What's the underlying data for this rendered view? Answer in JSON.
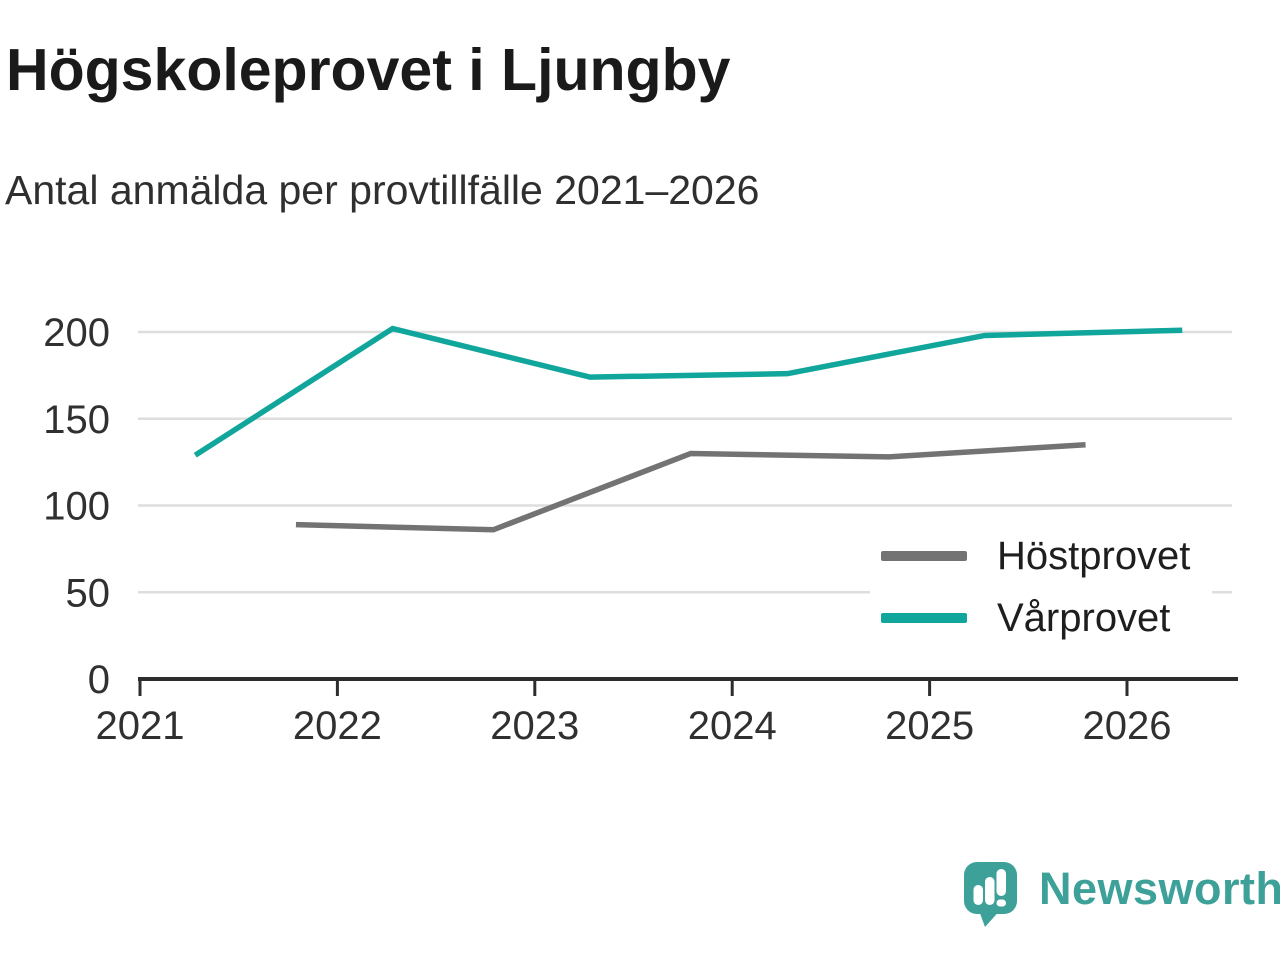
{
  "chart_data": {
    "type": "line",
    "title": "Högskoleprovet i Ljungby",
    "subtitle": "Antal anmälda per provtillfälle 2021–2026",
    "x_ticks": [
      2021,
      2022,
      2023,
      2024,
      2025,
      2026
    ],
    "y_ticks": [
      0,
      50,
      100,
      150,
      200
    ],
    "xlim": [
      2020.99,
      2026.56
    ],
    "ylim": [
      0,
      210
    ],
    "grid": "horizontal-only",
    "legend_position": "center-right",
    "series": [
      {
        "name": "Höstprovet",
        "color": "#737373",
        "points": [
          [
            2021.79,
            89
          ],
          [
            2022.79,
            86
          ],
          [
            2023.79,
            130
          ],
          [
            2024.79,
            128
          ],
          [
            2025.79,
            135
          ]
        ]
      },
      {
        "name": "Vårprovet",
        "color": "#10a69b",
        "points": [
          [
            2021.28,
            129
          ],
          [
            2022.28,
            202
          ],
          [
            2023.28,
            174
          ],
          [
            2024.28,
            176
          ],
          [
            2025.28,
            198
          ],
          [
            2026.28,
            201
          ]
        ]
      }
    ]
  },
  "colors": {
    "background": "#ffffff",
    "grid": "#dedede",
    "axis": "#2d2d2d",
    "tick_label": "#303030",
    "title": "#1a1a1a",
    "subtitle": "#2f2f2f",
    "legend_text": "#1e1e1e",
    "logo": "#3da19a"
  },
  "logo": {
    "text": "Newsworthy"
  }
}
